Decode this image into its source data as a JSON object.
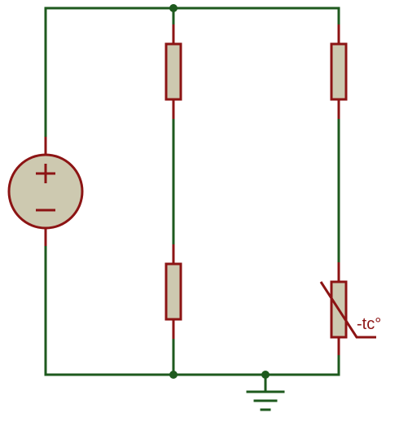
{
  "colors": {
    "wire": "#1e5a1e",
    "component_outline": "#8c1414",
    "component_fill": "#cdc9b0",
    "junction": "#1e5a1e",
    "background": "#ffffff"
  },
  "components": {
    "voltage_source": {
      "symbol": "dc-voltage-source",
      "positive_sign": "+",
      "negative_sign": "−"
    },
    "resistor_top_middle": {
      "symbol": "resistor"
    },
    "resistor_bottom_middle": {
      "symbol": "resistor"
    },
    "resistor_top_right": {
      "symbol": "resistor"
    },
    "thermistor": {
      "symbol": "ntc-thermistor",
      "label": "-tc°"
    },
    "ground": {
      "symbol": "ground"
    }
  },
  "junctions": 3
}
